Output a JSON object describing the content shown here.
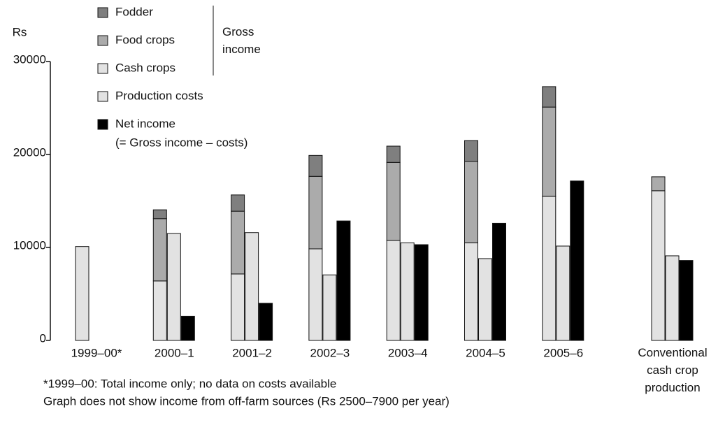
{
  "chart_data": {
    "type": "bar",
    "y_label": "Rs",
    "ylim": [
      0,
      30000
    ],
    "yticks": [
      0,
      10000,
      20000,
      30000
    ],
    "categories": [
      "1999–00*",
      "2000–1",
      "2001–2",
      "2002–3",
      "2003–4",
      "2004–5",
      "2005–6",
      "Conventional\ncash crop\nproduction"
    ],
    "series": [
      {
        "name": "Fodder",
        "color": "#7f7f7f",
        "values": [
          null,
          950,
          1750,
          2250,
          1750,
          2250,
          2200,
          null
        ]
      },
      {
        "name": "Food crops",
        "color": "#ababab",
        "values": [
          null,
          6700,
          6750,
          7800,
          8400,
          8750,
          9600,
          1500
        ]
      },
      {
        "name": "Cash crops",
        "color": "#e2e2e2",
        "values": [
          10100,
          6400,
          7150,
          9850,
          10750,
          10500,
          15500,
          16100
        ]
      },
      {
        "name": "Production costs",
        "color": "#e2e2e2",
        "values": [
          null,
          11500,
          11600,
          7050,
          10500,
          8800,
          10150,
          9100
        ]
      },
      {
        "name": "Net income",
        "color": "#000000",
        "values": [
          null,
          2600,
          4000,
          12850,
          10300,
          12600,
          17150,
          8600
        ]
      }
    ],
    "legend_group": {
      "label": "Gross income",
      "series": [
        0,
        1,
        2
      ]
    },
    "legend_note": "(= Gross income – costs)",
    "footnotes": [
      "*1999–00: Total income only; no data on costs available",
      "Graph does not show income from off-farm sources (Rs 2500–7900 per year)"
    ]
  }
}
